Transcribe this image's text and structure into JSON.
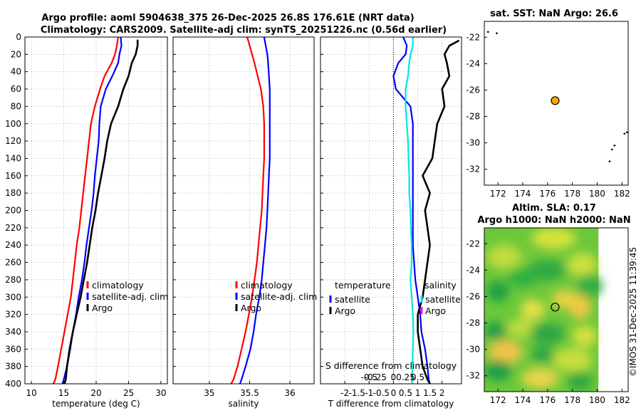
{
  "titles": {
    "line1": "Argo profile: aoml 5904638_375 26-Dec-2025 26.8S 176.61E (NRT data)",
    "line2": "Climatology: CARS2009. Satellite-adj clim: synTS_20251226.nc (0.56d earlier)"
  },
  "colors": {
    "clim": "#ff0000",
    "sat": "#0000ff",
    "argo": "#000000",
    "sdiff": "#00e5e5",
    "float": "#ffa500"
  },
  "chart_data": [
    {
      "type": "line",
      "id": "temperature",
      "xlabel": "temperature (deg C)",
      "xlim": [
        9,
        31
      ],
      "ylim": [
        0,
        400
      ],
      "xticks": [
        10,
        15,
        20,
        25,
        30
      ],
      "xtick_labels": [
        "10",
        "15",
        "20",
        "25",
        "30"
      ],
      "yticks": [
        0,
        20,
        40,
        60,
        80,
        100,
        120,
        140,
        160,
        180,
        200,
        220,
        240,
        260,
        280,
        300,
        320,
        340,
        360,
        380,
        400
      ],
      "ytick_labels": [
        "0",
        "20",
        "40",
        "60",
        "80",
        "100",
        "120",
        "140",
        "160",
        "180",
        "200",
        "220",
        "240",
        "260",
        "280",
        "300",
        "320",
        "340",
        "360",
        "380",
        "400"
      ],
      "legend": [
        "climatology",
        "satellite-adj. clim",
        "Argo"
      ],
      "series": [
        {
          "name": "climatology",
          "color": "#ff0000",
          "x": [
            23.4,
            23.2,
            22.9,
            22.4,
            21.3,
            20.6,
            19.8,
            19.2,
            18.9,
            18.6,
            18.3,
            18.0,
            17.7,
            17.4,
            17.0,
            16.7,
            16.4,
            16.1,
            15.6,
            15.1,
            14.6,
            14.1,
            13.7,
            13.4
          ],
          "y": [
            0,
            10,
            20,
            30,
            45,
            60,
            80,
            100,
            120,
            140,
            160,
            180,
            200,
            220,
            240,
            260,
            280,
            300,
            320,
            340,
            360,
            380,
            395,
            400
          ]
        },
        {
          "name": "satellite-adj. clim",
          "color": "#0000ff",
          "x": [
            23.8,
            23.9,
            23.6,
            23.4,
            22.5,
            21.5,
            20.7,
            20.5,
            20.4,
            20.1,
            19.8,
            19.6,
            19.3,
            18.9,
            18.5,
            18.2,
            17.8,
            17.3,
            16.9,
            16.4,
            16.0,
            15.5,
            15.0,
            14.8
          ],
          "y": [
            0,
            10,
            20,
            30,
            45,
            60,
            80,
            100,
            120,
            140,
            160,
            180,
            200,
            220,
            240,
            260,
            280,
            300,
            320,
            340,
            360,
            380,
            395,
            400
          ]
        },
        {
          "name": "Argo",
          "color": "#000000",
          "x": [
            26.4,
            26.4,
            26.1,
            25.5,
            25.0,
            24.2,
            23.4,
            22.3,
            21.7,
            21.3,
            20.8,
            20.3,
            19.9,
            19.4,
            19.0,
            18.6,
            18.1,
            17.6,
            17.0,
            16.4,
            15.9,
            15.5,
            15.3,
            15.1
          ],
          "y": [
            3,
            10,
            20,
            30,
            45,
            60,
            80,
            100,
            120,
            140,
            160,
            180,
            200,
            220,
            240,
            260,
            280,
            300,
            320,
            340,
            360,
            380,
            395,
            400
          ]
        }
      ]
    },
    {
      "type": "line",
      "id": "salinity",
      "xlabel": "salinity",
      "xlim": [
        34.55,
        36.3
      ],
      "ylim": [
        0,
        400
      ],
      "xticks": [
        35,
        35.5,
        36
      ],
      "xtick_labels": [
        "35",
        "35.5",
        "36"
      ],
      "legend": [
        "climatology",
        "satellite-adj. clim",
        "Argo"
      ],
      "series": [
        {
          "name": "climatology",
          "color": "#ff0000",
          "x": [
            35.47,
            35.5,
            35.53,
            35.56,
            35.6,
            35.64,
            35.67,
            35.68,
            35.68,
            35.68,
            35.67,
            35.66,
            35.65,
            35.63,
            35.61,
            35.59,
            35.56,
            35.53,
            35.49,
            35.45,
            35.4,
            35.35,
            35.3,
            35.27
          ],
          "y": [
            0,
            10,
            20,
            30,
            45,
            60,
            80,
            100,
            120,
            140,
            160,
            180,
            200,
            220,
            240,
            260,
            280,
            300,
            320,
            340,
            360,
            380,
            395,
            400
          ]
        },
        {
          "name": "satellite-adj. clim",
          "color": "#0000ff",
          "x": [
            35.68,
            35.7,
            35.72,
            35.73,
            35.74,
            35.75,
            35.75,
            35.75,
            35.75,
            35.75,
            35.74,
            35.73,
            35.72,
            35.71,
            35.69,
            35.67,
            35.65,
            35.62,
            35.58,
            35.55,
            35.51,
            35.45,
            35.4,
            35.38
          ],
          "y": [
            0,
            10,
            20,
            30,
            45,
            60,
            80,
            100,
            120,
            140,
            160,
            180,
            200,
            220,
            240,
            260,
            280,
            300,
            320,
            340,
            360,
            380,
            395,
            400
          ]
        },
        {
          "name": "Argo",
          "color": "#000000",
          "x": [],
          "y": []
        }
      ]
    },
    {
      "type": "line",
      "id": "difference",
      "xlabel": "T difference from climatology",
      "xlabel_top": "S difference from climatology",
      "xlim": [
        -3,
        2.8
      ],
      "ylim": [
        0,
        400
      ],
      "xticks": [
        -2,
        -1,
        0,
        1,
        2
      ],
      "xtick_labels": [
        "-2",
        "-1.5",
        "-1",
        "-0.5",
        "0",
        "0.5",
        "1",
        "1.5",
        "2"
      ],
      "stick_labels": [
        "-0.5",
        "-0.25",
        "0",
        "0.25",
        "0.5"
      ],
      "legend_headers": [
        "temperature",
        "salinity"
      ],
      "legend_left": [
        "satellite",
        "Argo"
      ],
      "legend_right": [
        "satellite",
        "Argo"
      ],
      "series": [
        {
          "name": "T satellite",
          "color": "#0000ff",
          "x": [
            0.4,
            0.55,
            0.5,
            0.2,
            0.0,
            0.1,
            0.7,
            0.8,
            0.8,
            0.8,
            0.8,
            0.8,
            0.8,
            0.8,
            0.8,
            0.85,
            0.9,
            1.0,
            1.1,
            1.15,
            1.3,
            1.4,
            1.45,
            1.5
          ],
          "y": [
            0,
            10,
            20,
            30,
            45,
            60,
            80,
            100,
            120,
            140,
            160,
            180,
            200,
            220,
            240,
            260,
            280,
            300,
            320,
            340,
            360,
            380,
            395,
            400
          ]
        },
        {
          "name": "S satellite",
          "color": "#00e5e5",
          "x": [
            0.8,
            0.8,
            0.7,
            0.65,
            0.6,
            0.5,
            0.5,
            0.55,
            0.6,
            0.62,
            0.65,
            0.65,
            0.7,
            0.72,
            0.75,
            0.75,
            0.7,
            0.75,
            0.8,
            0.82,
            0.8,
            0.78,
            0.77,
            0.77
          ],
          "y": [
            0,
            10,
            20,
            30,
            45,
            60,
            80,
            100,
            120,
            140,
            160,
            180,
            200,
            220,
            240,
            260,
            280,
            300,
            320,
            340,
            360,
            380,
            395,
            400
          ]
        },
        {
          "name": "T Argo",
          "color": "#000000",
          "x": [
            2.7,
            2.3,
            2.1,
            2.2,
            2.3,
            2.0,
            2.1,
            1.8,
            1.7,
            1.6,
            1.2,
            1.5,
            1.3,
            1.4,
            1.5,
            1.4,
            1.3,
            1.2,
            1.0,
            1.0,
            1.1,
            1.2,
            1.4,
            1.5
          ],
          "y": [
            4,
            10,
            20,
            30,
            45,
            60,
            80,
            100,
            120,
            140,
            160,
            180,
            200,
            220,
            240,
            260,
            280,
            300,
            320,
            340,
            360,
            380,
            395,
            400
          ]
        }
      ]
    },
    {
      "type": "scatter",
      "id": "sst-map",
      "title": "sat. SST: NaN Argo: 26.6",
      "xlim": [
        170.9,
        182.5
      ],
      "ylim": [
        -33.2,
        -20.8
      ],
      "xticks": [
        172,
        174,
        176,
        178,
        180,
        182
      ],
      "xtick_labels": [
        "172",
        "174",
        "176",
        "178",
        "180",
        "182"
      ],
      "yticks": [
        -22,
        -24,
        -26,
        -28,
        -30,
        -32
      ],
      "ytick_labels": [
        "-22",
        "-24",
        "-26",
        "-28",
        "-30",
        "-32"
      ],
      "float_position": {
        "lon": 176.61,
        "lat": -26.8
      },
      "land_points": [
        [
          171.2,
          -21.6
        ],
        [
          171.9,
          -21.7
        ],
        [
          181.0,
          -31.4
        ],
        [
          181.2,
          -30.5
        ],
        [
          181.4,
          -30.2
        ],
        [
          182.2,
          -29.3
        ],
        [
          182.4,
          -29.2
        ]
      ]
    },
    {
      "type": "heatmap",
      "id": "sla-map",
      "title_line1": "Altim. SLA: 0.17",
      "title_line2": "Argo h1000: NaN h2000: NaN",
      "xlim": [
        170.9,
        182.5
      ],
      "ylim": [
        -33.2,
        -20.8
      ],
      "xticks": [
        172,
        174,
        176,
        178,
        180,
        182
      ],
      "xtick_labels": [
        "172",
        "174",
        "176",
        "178",
        "180",
        "182"
      ],
      "yticks": [
        -22,
        -24,
        -26,
        -28,
        -30,
        -32
      ],
      "ytick_labels": [
        "-22",
        "-24",
        "-26",
        "-28",
        "-30",
        "-32"
      ],
      "float_position": {
        "lon": 176.61,
        "lat": -26.8
      },
      "data_extent_lon": [
        170.9,
        180.1
      ]
    }
  ],
  "watermark": "©IMOS 31-Dec-2025 11:39:45"
}
